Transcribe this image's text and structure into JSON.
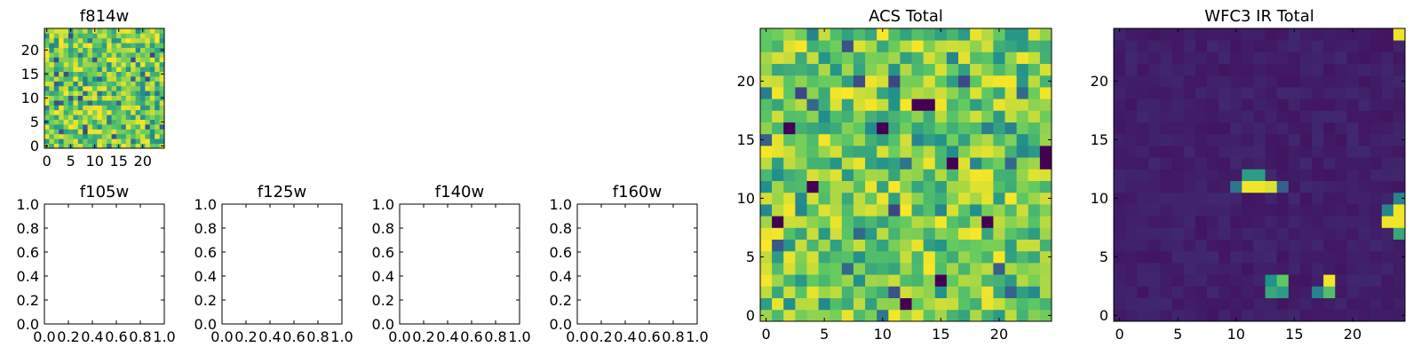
{
  "figure": {
    "panels": [
      "f814w",
      "f105w",
      "f125w",
      "f140w",
      "f160w",
      "ACS Total",
      "WFC3 IR Total"
    ]
  },
  "colormap": {
    "name": "viridis",
    "stops": [
      "#440154",
      "#3b528b",
      "#21918c",
      "#5ec962",
      "#fde725"
    ]
  },
  "chart_data": [
    {
      "type": "heatmap",
      "id": "f814w",
      "title": "f814w",
      "grid": [
        25,
        25
      ],
      "xlim": [
        -0.5,
        24.5
      ],
      "ylim": [
        -0.5,
        24.5
      ],
      "xticks": [
        0,
        5,
        10,
        15,
        20
      ],
      "yticks": [
        0,
        5,
        10,
        15,
        20
      ],
      "xticklabels": [
        "0",
        "5",
        "10",
        "15",
        "20"
      ],
      "yticklabels": [
        "0",
        "5",
        "10",
        "15",
        "20"
      ],
      "value_range": [
        0,
        1
      ],
      "field": "noise",
      "seed": 814
    },
    {
      "type": "empty",
      "id": "f105w",
      "title": "f105w",
      "xlim": [
        0,
        1
      ],
      "ylim": [
        0,
        1
      ],
      "xticks": [
        0,
        0.2,
        0.4,
        0.6,
        0.8,
        1.0
      ],
      "yticks": [
        0,
        0.2,
        0.4,
        0.6,
        0.8,
        1.0
      ],
      "xticklabels": [
        "0.0",
        "0.2",
        "0.4",
        "0.6",
        "0.8",
        "1.0"
      ],
      "yticklabels": [
        "0.0",
        "0.2",
        "0.4",
        "0.6",
        "0.8",
        "1.0"
      ]
    },
    {
      "type": "empty",
      "id": "f125w",
      "title": "f125w",
      "xlim": [
        0,
        1
      ],
      "ylim": [
        0,
        1
      ],
      "xticks": [
        0,
        0.2,
        0.4,
        0.6,
        0.8,
        1.0
      ],
      "yticks": [
        0,
        0.2,
        0.4,
        0.6,
        0.8,
        1.0
      ],
      "xticklabels": [
        "0.0",
        "0.2",
        "0.4",
        "0.6",
        "0.8",
        "1.0"
      ],
      "yticklabels": [
        "0.0",
        "0.2",
        "0.4",
        "0.6",
        "0.8",
        "1.0"
      ]
    },
    {
      "type": "empty",
      "id": "f140w",
      "title": "f140w",
      "xlim": [
        0,
        1
      ],
      "ylim": [
        0,
        1
      ],
      "xticks": [
        0,
        0.2,
        0.4,
        0.6,
        0.8,
        1.0
      ],
      "yticks": [
        0,
        0.2,
        0.4,
        0.6,
        0.8,
        1.0
      ],
      "xticklabels": [
        "0.0",
        "0.2",
        "0.4",
        "0.6",
        "0.8",
        "1.0"
      ],
      "yticklabels": [
        "0.0",
        "0.2",
        "0.4",
        "0.6",
        "0.8",
        "1.0"
      ]
    },
    {
      "type": "empty",
      "id": "f160w",
      "title": "f160w",
      "xlim": [
        0,
        1
      ],
      "ylim": [
        0,
        1
      ],
      "xticks": [
        0,
        0.2,
        0.4,
        0.6,
        0.8,
        1.0
      ],
      "yticks": [
        0,
        0.2,
        0.4,
        0.6,
        0.8,
        1.0
      ],
      "xticklabels": [
        "0.0",
        "0.2",
        "0.4",
        "0.6",
        "0.8",
        "1.0"
      ],
      "yticklabels": [
        "0.0",
        "0.2",
        "0.4",
        "0.6",
        "0.8",
        "1.0"
      ]
    },
    {
      "type": "heatmap",
      "id": "acs-total",
      "title": "ACS Total",
      "grid": [
        25,
        25
      ],
      "xlim": [
        -0.5,
        24.5
      ],
      "ylim": [
        -0.5,
        24.5
      ],
      "xticks": [
        0,
        5,
        10,
        15,
        20
      ],
      "yticks": [
        0,
        5,
        10,
        15,
        20
      ],
      "xticklabels": [
        "0",
        "5",
        "10",
        "15",
        "20"
      ],
      "yticklabels": [
        "0",
        "5",
        "10",
        "15",
        "20"
      ],
      "value_range": [
        0,
        1
      ],
      "field": "noise",
      "seed": 1042,
      "dark_pixels": [
        [
          13,
          18
        ],
        [
          14,
          18
        ],
        [
          2,
          16
        ],
        [
          10,
          16
        ],
        [
          24,
          14
        ],
        [
          16,
          13
        ],
        [
          24,
          13
        ],
        [
          4,
          11
        ],
        [
          19,
          8
        ],
        [
          1,
          8
        ],
        [
          15,
          3
        ],
        [
          12,
          1
        ]
      ]
    },
    {
      "type": "heatmap",
      "id": "wfc3-ir-total",
      "title": "WFC3 IR Total",
      "grid": [
        25,
        25
      ],
      "xlim": [
        -0.5,
        24.5
      ],
      "ylim": [
        -0.5,
        24.5
      ],
      "xticks": [
        0,
        5,
        10,
        15,
        20
      ],
      "yticks": [
        0,
        5,
        10,
        15,
        20
      ],
      "xticklabels": [
        "0",
        "5",
        "10",
        "15",
        "20"
      ],
      "yticklabels": [
        "0",
        "5",
        "10",
        "15",
        "20"
      ],
      "value_range": [
        0,
        1
      ],
      "field": "background",
      "seed": 3,
      "background_value": 0.06,
      "bright_pixels": [
        [
          24,
          24,
          0.98
        ],
        [
          11,
          12,
          0.55
        ],
        [
          12,
          12,
          0.55
        ],
        [
          10,
          11,
          0.4
        ],
        [
          11,
          11,
          0.98
        ],
        [
          12,
          11,
          0.98
        ],
        [
          13,
          11,
          0.95
        ],
        [
          14,
          11,
          0.3
        ],
        [
          24,
          10,
          0.45
        ],
        [
          23,
          9,
          0.45
        ],
        [
          24,
          9,
          0.98
        ],
        [
          23,
          8,
          0.98
        ],
        [
          24,
          8,
          0.98
        ],
        [
          24,
          7,
          0.6
        ],
        [
          13,
          3,
          0.5
        ],
        [
          14,
          3,
          0.75
        ],
        [
          13,
          2,
          0.6
        ],
        [
          14,
          2,
          0.55
        ],
        [
          18,
          3,
          0.98
        ],
        [
          18,
          2,
          0.7
        ],
        [
          17,
          2,
          0.45
        ]
      ]
    }
  ]
}
